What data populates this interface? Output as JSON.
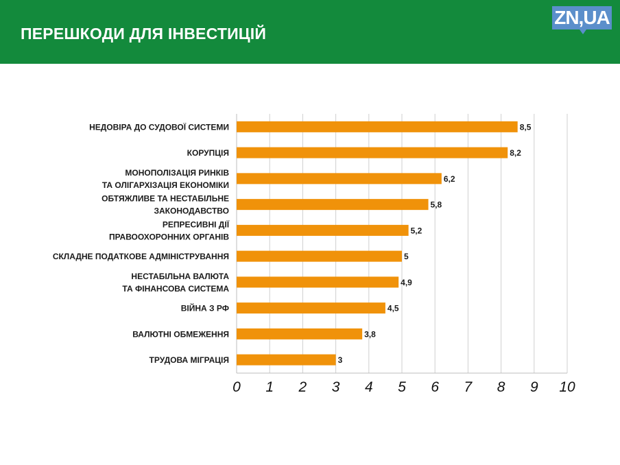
{
  "header": {
    "title": "ПЕРЕШКОДИ ДЛЯ ІНВЕСТИЦІЙ",
    "logo": "ZN,UA"
  },
  "colors": {
    "header": "#138a3c",
    "bar": "#f0920a",
    "logo": "#5b8fcb",
    "grid": "#cfcfcf"
  },
  "chart_data": {
    "type": "bar",
    "orientation": "horizontal",
    "title": "ПЕРЕШКОДИ ДЛЯ ІНВЕСТИЦІЙ",
    "categories": [
      [
        "НЕДОВІРА ДО СУДОВОЇ СИСТЕМИ"
      ],
      [
        "КОРУПЦІЯ"
      ],
      [
        "МОНОПОЛІЗАЦІЯ РИНКІВ",
        "ТА ОЛІГАРХІЗАЦІЯ ЕКОНОМІКИ"
      ],
      [
        "ОБТЯЖЛИВЕ ТА НЕСТАБІЛЬНЕ",
        "ЗАКОНОДАВСТВО"
      ],
      [
        "РЕПРЕСИВНІ ДІЇ",
        "ПРАВООХОРОННИХ ОРГАНІВ"
      ],
      [
        "СКЛАДНЕ ПОДАТКОВЕ АДМІНІСТРУВАННЯ"
      ],
      [
        "НЕСТАБІЛЬНА ВАЛЮТА",
        "ТА ФІНАНСОВА СИСТЕМА"
      ],
      [
        "ВІЙНА З РФ"
      ],
      [
        "ВАЛЮТНІ ОБМЕЖЕННЯ"
      ],
      [
        "ТРУДОВА МІГРАЦІЯ"
      ]
    ],
    "values": [
      8.5,
      8.2,
      6.2,
      5.8,
      5.2,
      5,
      4.9,
      4.5,
      3.8,
      3
    ],
    "value_labels": [
      "8,5",
      "8,2",
      "6,2",
      "5,8",
      "5,2",
      "5",
      "4,9",
      "4,5",
      "3,8",
      "3"
    ],
    "xlim": [
      0,
      10
    ],
    "xticks": [
      "0",
      "1",
      "2",
      "3",
      "4",
      "5",
      "6",
      "7",
      "8",
      "9",
      "10"
    ],
    "grid": true,
    "xlabel": "",
    "ylabel": ""
  }
}
